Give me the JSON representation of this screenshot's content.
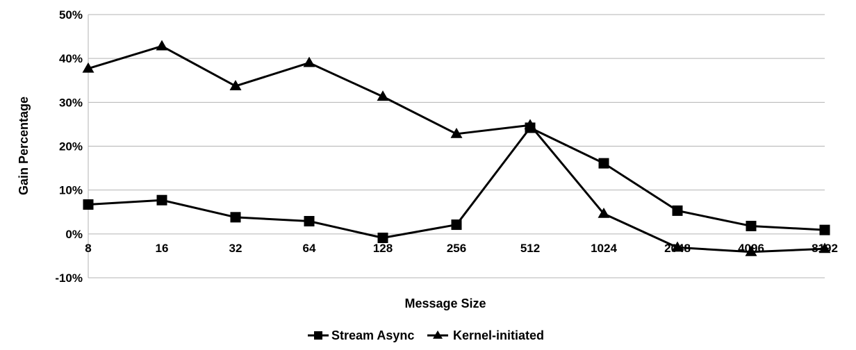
{
  "chart_data": {
    "type": "line",
    "title": "",
    "xlabel": "Message Size",
    "ylabel": "Gain Percentage",
    "categories": [
      "8",
      "16",
      "32",
      "64",
      "128",
      "256",
      "512",
      "1024",
      "2048",
      "4096",
      "8192"
    ],
    "ylim": [
      -10,
      50
    ],
    "yticks": [
      -10,
      0,
      10,
      20,
      30,
      40,
      50
    ],
    "ytick_labels": [
      "-10%",
      "0%",
      "10%",
      "20%",
      "30%",
      "40%",
      "50%"
    ],
    "grid": "horizontal",
    "legend_position": "bottom",
    "series": [
      {
        "name": "Stream Async",
        "marker": "square",
        "color": "#000000",
        "values": [
          6.7,
          7.7,
          3.8,
          2.9,
          -0.9,
          2.1,
          24.2,
          16.1,
          5.3,
          1.8,
          0.9
        ]
      },
      {
        "name": "Kernel-initiated",
        "marker": "triangle",
        "color": "#000000",
        "values": [
          37.7,
          42.8,
          33.7,
          39.0,
          31.3,
          22.8,
          24.8,
          4.6,
          -3.1,
          -4.1,
          -3.4
        ]
      }
    ]
  }
}
